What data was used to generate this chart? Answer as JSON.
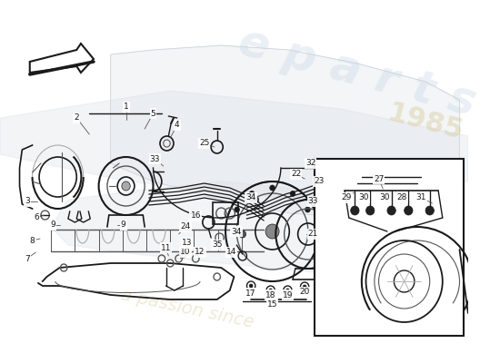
{
  "bg_color": "#ffffff",
  "line_color": "#1a1a1a",
  "mid_color": "#555555",
  "light_color": "#aaaaaa",
  "very_light_color": "#cccccc",
  "wm_blue": "#c5d5e5",
  "wm_tan": "#d8cc9a",
  "fig_w": 5.5,
  "fig_h": 4.0,
  "dpi": 100
}
